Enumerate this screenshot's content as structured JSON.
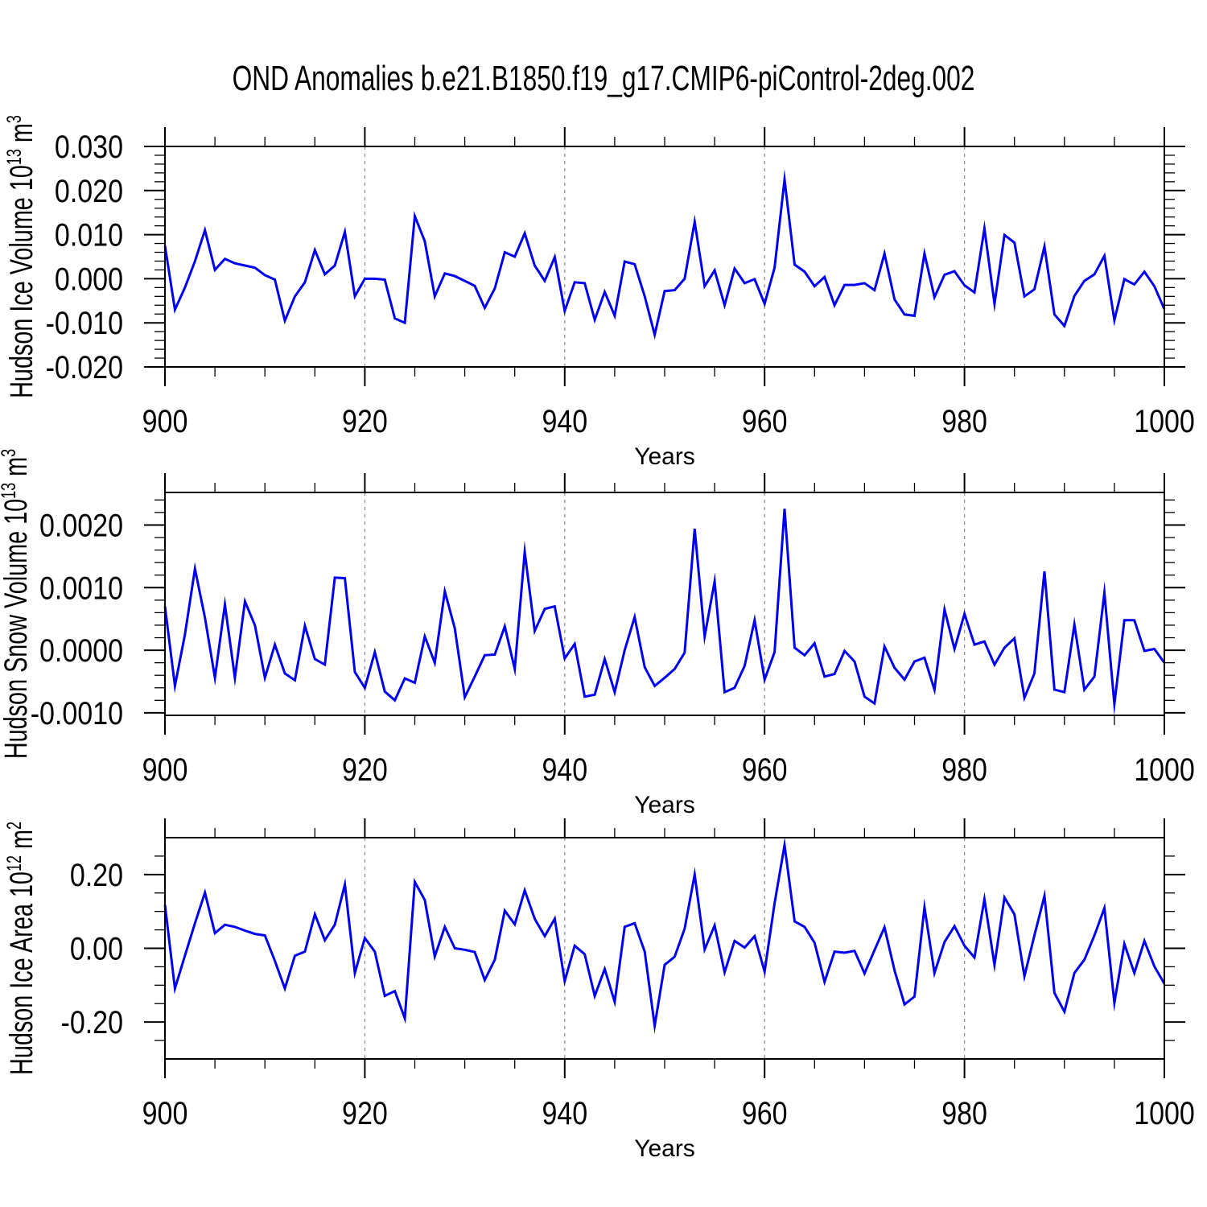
{
  "title": "OND Anomalies b.e21.B1850.f19_g17.CMIP6-piControl-2deg.002",
  "line_color": "#0000EE",
  "grid_color": "#909090",
  "chart_data": [
    {
      "type": "line",
      "ylabel_parts": {
        "pre": "Hudson Ice Volume 10",
        "sup1": "13",
        "mid": " m",
        "sup2": "3"
      },
      "xlabel": "Years",
      "x_start": 900,
      "x_step": 1,
      "xlim": [
        900,
        1000
      ],
      "xticks": [
        900,
        920,
        940,
        960,
        980,
        1000
      ],
      "xtick_labels": [
        "900",
        "920",
        "940",
        "960",
        "980",
        "1000"
      ],
      "x_minor_step": 5,
      "grid_x": [
        920,
        940,
        960,
        980
      ],
      "ylim": [
        -0.02,
        0.03
      ],
      "yticks": [
        0.03,
        0.02,
        0.01,
        0.0,
        -0.01,
        -0.02
      ],
      "ytick_labels": [
        "0.030",
        "0.020",
        "0.010",
        "0.000",
        "-0.010",
        "-0.020"
      ],
      "y_minor_step": 0.002,
      "values": [
        0.0075,
        -0.007,
        -0.002,
        0.004,
        0.011,
        0.002,
        0.0045,
        0.0035,
        0.003,
        0.0025,
        0.0008,
        -0.0002,
        -0.0095,
        -0.004,
        -0.0008,
        0.0065,
        0.001,
        0.003,
        0.0106,
        -0.004,
        0.0,
        0.0,
        -0.0002,
        -0.009,
        -0.01,
        0.0142,
        0.0085,
        -0.004,
        0.0012,
        0.0006,
        -0.0005,
        -0.0016,
        -0.0066,
        -0.0022,
        0.006,
        0.005,
        0.0103,
        0.003,
        -0.0005,
        0.0049,
        -0.0073,
        -0.0008,
        -0.001,
        -0.0093,
        -0.003,
        -0.0084,
        0.0039,
        0.0033,
        -0.004,
        -0.0127,
        -0.0028,
        -0.0026,
        0.0,
        0.0129,
        -0.0017,
        0.0019,
        -0.006,
        0.0023,
        -0.001,
        -0.0001,
        -0.0057,
        0.0025,
        0.0225,
        0.0032,
        0.0016,
        -0.0017,
        0.0004,
        -0.006,
        -0.0014,
        -0.0014,
        -0.001,
        -0.0026,
        0.0057,
        -0.0047,
        -0.0081,
        -0.0084,
        0.0057,
        -0.0042,
        0.0009,
        0.0017,
        -0.0015,
        -0.0031,
        0.0114,
        -0.0057,
        0.0099,
        0.0082,
        -0.004,
        -0.0024,
        0.0073,
        -0.0081,
        -0.0107,
        -0.0039,
        -0.0005,
        0.001,
        0.0052,
        -0.0094,
        -0.0001,
        -0.0013,
        0.0016,
        -0.0017,
        -0.0069
      ]
    },
    {
      "type": "line",
      "ylabel_parts": {
        "pre": "Hudson Snow Volume 10",
        "sup1": "13",
        "mid": " m",
        "sup2": "3"
      },
      "xlabel": "Years",
      "x_start": 900,
      "x_step": 1,
      "xlim": [
        900,
        1000
      ],
      "xticks": [
        900,
        920,
        940,
        960,
        980,
        1000
      ],
      "xtick_labels": [
        "900",
        "920",
        "940",
        "960",
        "980",
        "1000"
      ],
      "x_minor_step": 5,
      "grid_x": [
        920,
        940,
        960,
        980
      ],
      "ylim": [
        -0.00104,
        0.00252
      ],
      "yticks": [
        0.002,
        0.001,
        0.0,
        -0.001
      ],
      "ytick_labels": [
        "0.0020",
        "0.0010",
        "0.0000",
        "-0.0010"
      ],
      "y_minor_step": 0.0002,
      "values": [
        0.0007,
        -0.00057,
        0.00025,
        0.0013,
        0.00052,
        -0.00044,
        0.00073,
        -0.00044,
        0.00078,
        0.0004,
        -0.00044,
        9e-05,
        -0.00037,
        -0.00048,
        0.00039,
        -0.00014,
        -0.00023,
        0.00116,
        0.00115,
        -0.00035,
        -0.0006,
        -3e-05,
        -0.00066,
        -0.0008,
        -0.00045,
        -0.00052,
        0.00022,
        -0.0002,
        0.00094,
        0.00035,
        -0.00075,
        -0.00042,
        -8e-05,
        -7e-05,
        0.00038,
        -0.0003,
        0.00157,
        0.00031,
        0.00066,
        0.0007,
        -0.00013,
        0.0001,
        -0.00074,
        -0.00071,
        -0.00014,
        -0.00067,
        0.0,
        0.00053,
        -0.00027,
        -0.00057,
        -0.00044,
        -0.0003,
        -4e-05,
        0.00194,
        0.00022,
        0.0011,
        -0.00067,
        -0.0006,
        -0.00025,
        0.00048,
        -0.00047,
        -3e-05,
        0.00226,
        4e-05,
        -8e-05,
        0.00011,
        -0.00042,
        -0.00038,
        -1e-05,
        -0.00018,
        -0.00074,
        -0.00085,
        6e-05,
        -0.00028,
        -0.00047,
        -0.00018,
        -0.00012,
        -0.00063,
        0.00065,
        2e-05,
        0.00058,
        9e-05,
        0.00014,
        -0.00023,
        4e-05,
        0.00019,
        -0.00076,
        -0.00037,
        0.00126,
        -0.00063,
        -0.00067,
        0.00041,
        -0.00063,
        -0.00042,
        0.00092,
        -0.00086,
        0.00048,
        0.00048,
        -1e-05,
        2e-05,
        -0.0002
      ]
    },
    {
      "type": "line",
      "ylabel_parts": {
        "pre": "Hudson Ice Area 10",
        "sup1": "12",
        "mid": " m",
        "sup2": "2"
      },
      "xlabel": "Years",
      "x_start": 900,
      "x_step": 1,
      "xlim": [
        900,
        1000
      ],
      "xticks": [
        900,
        920,
        940,
        960,
        980,
        1000
      ],
      "xtick_labels": [
        "900",
        "920",
        "940",
        "960",
        "980",
        "1000"
      ],
      "x_minor_step": 5,
      "grid_x": [
        920,
        940,
        960,
        980
      ],
      "ylim": [
        -0.3,
        0.3
      ],
      "yticks": [
        0.2,
        0.0,
        -0.2
      ],
      "ytick_labels": [
        "0.20",
        "0.00",
        "-0.20"
      ],
      "y_minor_step": 0.05,
      "values": [
        0.118,
        -0.109,
        -0.02,
        0.068,
        0.151,
        0.041,
        0.064,
        0.058,
        0.048,
        0.039,
        0.035,
        -0.034,
        -0.109,
        -0.02,
        -0.009,
        0.092,
        0.022,
        0.064,
        0.173,
        -0.067,
        0.028,
        -0.009,
        -0.129,
        -0.116,
        -0.19,
        0.18,
        0.131,
        -0.022,
        0.058,
        0.0,
        -0.004,
        -0.01,
        -0.086,
        -0.031,
        0.102,
        0.065,
        0.157,
        0.08,
        0.033,
        0.08,
        -0.089,
        0.007,
        -0.016,
        -0.129,
        -0.056,
        -0.145,
        0.058,
        0.068,
        -0.009,
        -0.21,
        -0.045,
        -0.023,
        0.053,
        0.2,
        -0.003,
        0.062,
        -0.065,
        0.02,
        0.002,
        0.033,
        -0.063,
        0.122,
        0.28,
        0.073,
        0.058,
        0.015,
        -0.091,
        -0.009,
        -0.012,
        -0.007,
        -0.068,
        -0.005,
        0.057,
        -0.06,
        -0.152,
        -0.131,
        0.111,
        -0.067,
        0.017,
        0.06,
        0.007,
        -0.025,
        0.133,
        -0.045,
        0.138,
        0.092,
        -0.076,
        0.035,
        0.142,
        -0.121,
        -0.172,
        -0.067,
        -0.031,
        0.035,
        0.109,
        -0.148,
        0.012,
        -0.067,
        0.02,
        -0.049,
        -0.096
      ]
    }
  ]
}
